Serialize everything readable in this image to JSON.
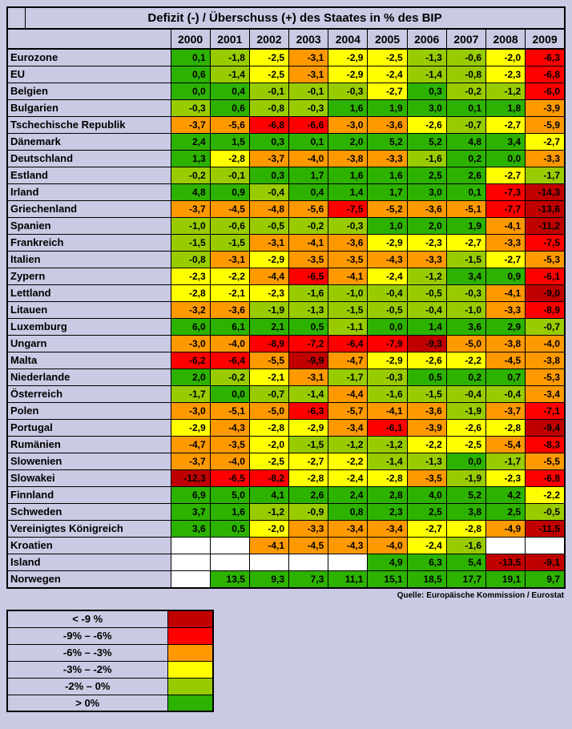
{
  "page": {
    "background": "#cacae4",
    "blank_cell_color": "#ffffff"
  },
  "chart_data": {
    "type": "heatmap",
    "title": "Defizit (-) / Überschuss (+) des Staates in % des BIP",
    "x": [
      "2000",
      "2001",
      "2002",
      "2003",
      "2004",
      "2005",
      "2006",
      "2007",
      "2008",
      "2009"
    ],
    "unit": "% des BIP",
    "number_format": "one decimal, decimal comma",
    "rows": [
      {
        "name": "Eurozone",
        "values": [
          0.1,
          -1.8,
          -2.5,
          -3.1,
          -2.9,
          -2.5,
          -1.3,
          -0.6,
          -2.0,
          -6.3
        ]
      },
      {
        "name": "EU",
        "values": [
          0.6,
          -1.4,
          -2.5,
          -3.1,
          -2.9,
          -2.4,
          -1.4,
          -0.8,
          -2.3,
          -6.8
        ]
      },
      {
        "name": "Belgien",
        "values": [
          0.0,
          0.4,
          -0.1,
          -0.1,
          -0.3,
          -2.7,
          0.3,
          -0.2,
          -1.2,
          -6.0
        ]
      },
      {
        "name": "Bulgarien",
        "values": [
          -0.3,
          0.6,
          -0.8,
          -0.3,
          1.6,
          1.9,
          3.0,
          0.1,
          1.8,
          -3.9
        ]
      },
      {
        "name": "Tschechische Republik",
        "values": [
          -3.7,
          -5.6,
          -6.8,
          -6.6,
          -3.0,
          -3.6,
          -2.6,
          -0.7,
          -2.7,
          -5.9
        ]
      },
      {
        "name": "Dänemark",
        "values": [
          2.4,
          1.5,
          0.3,
          0.1,
          2.0,
          5.2,
          5.2,
          4.8,
          3.4,
          -2.7
        ]
      },
      {
        "name": "Deutschland",
        "values": [
          1.3,
          -2.8,
          -3.7,
          -4.0,
          -3.8,
          -3.3,
          -1.6,
          0.2,
          0.0,
          -3.3
        ]
      },
      {
        "name": "Estland",
        "values": [
          -0.2,
          -0.1,
          0.3,
          1.7,
          1.6,
          1.6,
          2.5,
          2.6,
          -2.7,
          -1.7
        ]
      },
      {
        "name": "Irland",
        "values": [
          4.8,
          0.9,
          -0.4,
          0.4,
          1.4,
          1.7,
          3.0,
          0.1,
          -7.3,
          -14.3
        ]
      },
      {
        "name": "Griechenland",
        "values": [
          -3.7,
          -4.5,
          -4.8,
          -5.6,
          -7.5,
          -5.2,
          -3.6,
          -5.1,
          -7.7,
          -13.6
        ]
      },
      {
        "name": "Spanien",
        "values": [
          -1.0,
          -0.6,
          -0.5,
          -0.2,
          -0.3,
          1.0,
          2.0,
          1.9,
          -4.1,
          -11.2
        ]
      },
      {
        "name": "Frankreich",
        "values": [
          -1.5,
          -1.5,
          -3.1,
          -4.1,
          -3.6,
          -2.9,
          -2.3,
          -2.7,
          -3.3,
          -7.5
        ]
      },
      {
        "name": "Italien",
        "values": [
          -0.8,
          -3.1,
          -2.9,
          -3.5,
          -3.5,
          -4.3,
          -3.3,
          -1.5,
          -2.7,
          -5.3
        ]
      },
      {
        "name": "Zypern",
        "values": [
          -2.3,
          -2.2,
          -4.4,
          -6.5,
          -4.1,
          -2.4,
          -1.2,
          3.4,
          0.9,
          -6.1
        ]
      },
      {
        "name": "Lettland",
        "values": [
          -2.8,
          -2.1,
          -2.3,
          -1.6,
          -1.0,
          -0.4,
          -0.5,
          -0.3,
          -4.1,
          -9.0
        ]
      },
      {
        "name": "Litauen",
        "values": [
          -3.2,
          -3.6,
          -1.9,
          -1.3,
          -1.5,
          -0.5,
          -0.4,
          -1.0,
          -3.3,
          -8.9
        ]
      },
      {
        "name": "Luxemburg",
        "values": [
          6.0,
          6.1,
          2.1,
          0.5,
          -1.1,
          0.0,
          1.4,
          3.6,
          2.9,
          -0.7
        ]
      },
      {
        "name": "Ungarn",
        "values": [
          -3.0,
          -4.0,
          -8.9,
          -7.2,
          -6.4,
          -7.9,
          -9.3,
          -5.0,
          -3.8,
          -4.0
        ]
      },
      {
        "name": "Malta",
        "values": [
          -6.2,
          -6.4,
          -5.5,
          -9.9,
          -4.7,
          -2.9,
          -2.6,
          -2.2,
          -4.5,
          -3.8
        ]
      },
      {
        "name": "Niederlande",
        "values": [
          2.0,
          -0.2,
          -2.1,
          -3.1,
          -1.7,
          -0.3,
          0.5,
          0.2,
          0.7,
          -5.3
        ]
      },
      {
        "name": "Österreich",
        "values": [
          -1.7,
          0.0,
          -0.7,
          -1.4,
          -4.4,
          -1.6,
          -1.5,
          -0.4,
          -0.4,
          -3.4
        ]
      },
      {
        "name": "Polen",
        "values": [
          -3.0,
          -5.1,
          -5.0,
          -6.3,
          -5.7,
          -4.1,
          -3.6,
          -1.9,
          -3.7,
          -7.1
        ]
      },
      {
        "name": "Portugal",
        "values": [
          -2.9,
          -4.3,
          -2.8,
          -2.9,
          -3.4,
          -6.1,
          -3.9,
          -2.6,
          -2.8,
          -9.4
        ]
      },
      {
        "name": "Rumänien",
        "values": [
          -4.7,
          -3.5,
          -2.0,
          -1.5,
          -1.2,
          -1.2,
          -2.2,
          -2.5,
          -5.4,
          -8.3
        ]
      },
      {
        "name": "Slowenien",
        "values": [
          -3.7,
          -4.0,
          -2.5,
          -2.7,
          -2.2,
          -1.4,
          -1.3,
          0.0,
          -1.7,
          -5.5
        ]
      },
      {
        "name": "Slowakei",
        "values": [
          -12.3,
          -6.5,
          -8.2,
          -2.8,
          -2.4,
          -2.8,
          -3.5,
          -1.9,
          -2.3,
          -6.8
        ]
      },
      {
        "name": "Finnland",
        "values": [
          6.9,
          5.0,
          4.1,
          2.6,
          2.4,
          2.8,
          4.0,
          5.2,
          4.2,
          -2.2
        ]
      },
      {
        "name": "Schweden",
        "values": [
          3.7,
          1.6,
          -1.2,
          -0.9,
          0.8,
          2.3,
          2.5,
          3.8,
          2.5,
          -0.5
        ]
      },
      {
        "name": "Vereinigtes Königreich",
        "values": [
          3.6,
          0.5,
          -2.0,
          -3.3,
          -3.4,
          -3.4,
          -2.7,
          -2.8,
          -4.9,
          -11.5
        ]
      },
      {
        "name": "Kroatien",
        "values": [
          null,
          null,
          -4.1,
          -4.5,
          -4.3,
          -4.0,
          -2.4,
          -1.6,
          null,
          null
        ]
      },
      {
        "name": "Island",
        "values": [
          null,
          null,
          null,
          null,
          null,
          4.9,
          6.3,
          5.4,
          -13.5,
          -9.1
        ]
      },
      {
        "name": "Norwegen",
        "values": [
          null,
          13.5,
          9.3,
          7.3,
          11.1,
          15.1,
          18.5,
          17.7,
          19.1,
          9.7
        ]
      }
    ]
  },
  "legend": {
    "items": [
      {
        "label": "< -9 %",
        "color": "#c00000"
      },
      {
        "label": "-9% – -6%",
        "color": "#ff0000"
      },
      {
        "label": "-6% – -3%",
        "color": "#ff9900"
      },
      {
        "label": "-3% – -2%",
        "color": "#ffff00"
      },
      {
        "label": "-2% – 0%",
        "color": "#99cc00"
      },
      {
        "label": "> 0%",
        "color": "#2db200"
      }
    ]
  },
  "source": "Quelle: Europäische Kommission / Eurostat"
}
